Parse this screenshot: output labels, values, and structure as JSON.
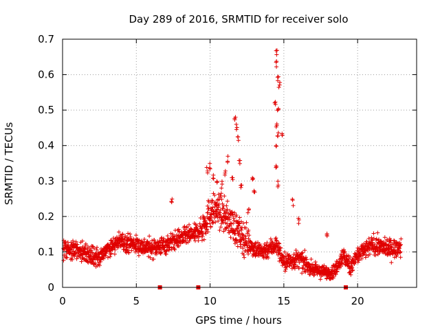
{
  "chart_data": {
    "type": "scatter",
    "title": "Day 289 of 2016, SRMTID for receiver solo",
    "xlabel": "GPS time / hours",
    "ylabel": "SRMTID / TECUs",
    "xlim": [
      0,
      24
    ],
    "ylim": [
      0,
      0.7
    ],
    "x_ticks": [
      "0",
      "5",
      "10",
      "15",
      "20"
    ],
    "y_ticks": [
      "0",
      "0.1",
      "0.2",
      "0.3",
      "0.4",
      "0.5",
      "0.6",
      "0.7"
    ],
    "grid": true,
    "marker": "plus",
    "color": "#e00000",
    "profile": {
      "description_hours": "approximate central trend of the SRMTID cloud (hour, TECU)",
      "points": [
        [
          0.0,
          0.11
        ],
        [
          1.0,
          0.1
        ],
        [
          2.0,
          0.09
        ],
        [
          2.5,
          0.08
        ],
        [
          3.0,
          0.11
        ],
        [
          4.0,
          0.13
        ],
        [
          5.0,
          0.12
        ],
        [
          6.0,
          0.11
        ],
        [
          7.0,
          0.12
        ],
        [
          8.0,
          0.14
        ],
        [
          9.0,
          0.15
        ],
        [
          9.5,
          0.17
        ],
        [
          10.0,
          0.21
        ],
        [
          10.5,
          0.22
        ],
        [
          11.0,
          0.2
        ],
        [
          11.5,
          0.18
        ],
        [
          12.0,
          0.15
        ],
        [
          12.5,
          0.13
        ],
        [
          13.0,
          0.11
        ],
        [
          13.5,
          0.1
        ],
        [
          14.0,
          0.11
        ],
        [
          14.5,
          0.12
        ],
        [
          15.0,
          0.07
        ],
        [
          16.0,
          0.08
        ],
        [
          17.0,
          0.05
        ],
        [
          18.0,
          0.04
        ],
        [
          18.5,
          0.05
        ],
        [
          19.0,
          0.09
        ],
        [
          19.5,
          0.06
        ],
        [
          20.0,
          0.09
        ],
        [
          21.0,
          0.12
        ],
        [
          22.0,
          0.11
        ],
        [
          23.0,
          0.11
        ]
      ]
    },
    "excursions": [
      [
        9.8,
        0.33
      ],
      [
        10.0,
        0.34
      ],
      [
        10.2,
        0.31
      ],
      [
        10.5,
        0.3
      ],
      [
        10.8,
        0.29
      ],
      [
        11.0,
        0.32
      ],
      [
        11.2,
        0.36
      ],
      [
        11.5,
        0.3
      ],
      [
        11.7,
        0.48
      ],
      [
        11.8,
        0.45
      ],
      [
        11.9,
        0.42
      ],
      [
        12.0,
        0.35
      ],
      [
        12.1,
        0.29
      ],
      [
        12.9,
        0.31
      ],
      [
        13.0,
        0.27
      ],
      [
        14.4,
        0.52
      ],
      [
        14.5,
        0.66
      ],
      [
        14.5,
        0.63
      ],
      [
        14.6,
        0.59
      ],
      [
        14.7,
        0.57
      ],
      [
        14.5,
        0.46
      ],
      [
        14.6,
        0.43
      ],
      [
        14.5,
        0.4
      ],
      [
        14.5,
        0.34
      ],
      [
        14.6,
        0.29
      ],
      [
        14.9,
        0.43
      ],
      [
        14.6,
        0.5
      ],
      [
        15.6,
        0.24
      ],
      [
        16.0,
        0.19
      ],
      [
        17.9,
        0.15
      ],
      [
        7.4,
        0.25
      ],
      [
        12.6,
        0.22
      ]
    ],
    "baseline_markers_x": [
      6.6,
      9.2,
      19.2
    ]
  }
}
